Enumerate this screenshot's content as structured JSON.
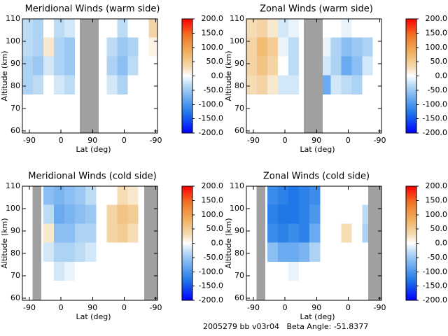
{
  "chart_data": [
    {
      "type": "contour",
      "title": "Meridional Winds (warm side)",
      "xlabel": "Lat (deg)",
      "ylabel": "Altitude (km)",
      "xlim": [
        -20,
        365
      ],
      "xticks": [
        {
          "value": 0,
          "label": "-90"
        },
        {
          "value": 90,
          "label": "0"
        },
        {
          "value": 180,
          "label": "90"
        },
        {
          "value": 270,
          "label": "0"
        },
        {
          "value": 360,
          "label": "-90"
        }
      ],
      "ylim": [
        59,
        110
      ],
      "yticks": [
        60,
        70,
        80,
        90,
        100,
        110
      ],
      "x": [
        -5,
        25,
        55,
        85,
        115,
        145,
        175,
        205,
        235,
        265,
        295,
        325,
        355
      ],
      "y": [
        63.5,
        72,
        80.5,
        89,
        97.5,
        106
      ],
      "z": [
        [
          null,
          null,
          null,
          null,
          null,
          null,
          null,
          null,
          null,
          null,
          null,
          null,
          null
        ],
        [
          null,
          0,
          null,
          0,
          0,
          null,
          null,
          null,
          null,
          null,
          null,
          null,
          null
        ],
        [
          -40,
          -30,
          0,
          -20,
          -30,
          null,
          null,
          0,
          -20,
          -40,
          0,
          0,
          0
        ],
        [
          -40,
          -50,
          -20,
          -40,
          -50,
          null,
          null,
          0,
          -40,
          -60,
          -30,
          0,
          0
        ],
        [
          -30,
          -40,
          20,
          -40,
          -50,
          null,
          null,
          0,
          -30,
          -50,
          -40,
          0,
          10
        ],
        [
          -30,
          -40,
          0,
          -30,
          -20,
          null,
          null,
          0,
          0,
          -30,
          0,
          0,
          40
        ]
      ],
      "gaps": [
        [
          144,
          197
        ]
      ],
      "colorbar": {
        "clim": [
          -200,
          200
        ],
        "ticks": [
          {
            "value": 200,
            "label": "200.0"
          },
          {
            "value": 150,
            "label": "150.0"
          },
          {
            "value": 100,
            "label": "100.0"
          },
          {
            "value": 50,
            "label": "50.0"
          },
          {
            "value": 0,
            "label": "0.0"
          },
          {
            "value": -50,
            "label": "-50.0"
          },
          {
            "value": -100,
            "label": "-100.0"
          },
          {
            "value": -150,
            "label": "-150.0"
          },
          {
            "value": -200,
            "label": "-200.0"
          }
        ]
      }
    },
    {
      "type": "contour",
      "title": "Zonal Winds (warm side)",
      "xlabel": "Lat (deg)",
      "ylabel": "Altitude (km)",
      "xlim": [
        -20,
        365
      ],
      "xticks": [
        {
          "value": 0,
          "label": "-90"
        },
        {
          "value": 90,
          "label": "0"
        },
        {
          "value": 180,
          "label": "90"
        },
        {
          "value": 270,
          "label": "0"
        },
        {
          "value": 360,
          "label": "-90"
        }
      ],
      "ylim": [
        59,
        110
      ],
      "yticks": [
        60,
        70,
        80,
        90,
        100,
        110
      ],
      "x": [
        -5,
        25,
        55,
        85,
        115,
        145,
        175,
        205,
        235,
        265,
        295,
        325,
        355
      ],
      "y": [
        63.5,
        72,
        80.5,
        89,
        97.5,
        106
      ],
      "z": [
        [
          null,
          null,
          null,
          null,
          null,
          null,
          null,
          null,
          null,
          null,
          null,
          null,
          null
        ],
        [
          null,
          null,
          null,
          null,
          null,
          null,
          null,
          null,
          null,
          null,
          null,
          null,
          null
        ],
        [
          30,
          40,
          20,
          -20,
          -20,
          null,
          null,
          -80,
          -20,
          -30,
          -40,
          0,
          0
        ],
        [
          40,
          60,
          40,
          0,
          -30,
          null,
          null,
          -20,
          -40,
          -80,
          -60,
          -20,
          0
        ],
        [
          40,
          70,
          50,
          -10,
          -30,
          null,
          null,
          -10,
          -40,
          -60,
          -50,
          -40,
          0
        ],
        [
          30,
          40,
          20,
          -20,
          -10,
          null,
          null,
          0,
          0,
          -10,
          0,
          0,
          0
        ]
      ],
      "gaps": [
        [
          144,
          197
        ]
      ],
      "colorbar": {
        "clim": [
          -200,
          200
        ],
        "ticks": [
          {
            "value": 200,
            "label": "200.0"
          },
          {
            "value": 150,
            "label": "150.0"
          },
          {
            "value": 100,
            "label": "100.0"
          },
          {
            "value": 50,
            "label": "50.0"
          },
          {
            "value": 0,
            "label": "0.0"
          },
          {
            "value": -50,
            "label": "-50.0"
          },
          {
            "value": -100,
            "label": "-100.0"
          },
          {
            "value": -150,
            "label": "-150.0"
          },
          {
            "value": -200,
            "label": "-200.0"
          }
        ]
      }
    },
    {
      "type": "contour",
      "title": "Meridional Winds (cold side)",
      "xlabel": "Lat (deg)",
      "ylabel": "Altitude (km)",
      "xlim": [
        -20,
        365
      ],
      "xticks": [
        {
          "value": 0,
          "label": "-90"
        },
        {
          "value": 90,
          "label": "0"
        },
        {
          "value": 180,
          "label": "90"
        },
        {
          "value": 270,
          "label": "0"
        },
        {
          "value": 360,
          "label": "-90"
        }
      ],
      "ylim": [
        59,
        110
      ],
      "yticks": [
        60,
        70,
        80,
        90,
        100,
        110
      ],
      "x": [
        -5,
        25,
        55,
        85,
        115,
        145,
        175,
        205,
        235,
        265,
        295,
        325,
        355
      ],
      "y": [
        63.5,
        72,
        80.5,
        89,
        97.5,
        106
      ],
      "z": [
        [
          null,
          null,
          null,
          null,
          null,
          null,
          null,
          null,
          null,
          null,
          null,
          null,
          null
        ],
        [
          null,
          null,
          0,
          -20,
          -10,
          0,
          0,
          null,
          null,
          null,
          null,
          null,
          null
        ],
        [
          null,
          null,
          -20,
          -40,
          -40,
          -30,
          -20,
          null,
          null,
          null,
          null,
          null,
          null
        ],
        [
          null,
          null,
          20,
          -60,
          -60,
          -40,
          -40,
          null,
          40,
          50,
          30,
          null,
          null
        ],
        [
          null,
          null,
          -30,
          -80,
          -70,
          -60,
          -50,
          null,
          40,
          60,
          50,
          null,
          null
        ],
        [
          null,
          null,
          -60,
          -70,
          -60,
          -50,
          -30,
          null,
          0,
          30,
          20,
          null,
          null
        ]
      ],
      "gaps": [
        [
          9,
          34
        ],
        [
          327,
          365
        ]
      ],
      "colorbar": {
        "clim": [
          -200,
          200
        ],
        "ticks": [
          {
            "value": 200,
            "label": "200.0"
          },
          {
            "value": 150,
            "label": "150.0"
          },
          {
            "value": 100,
            "label": "100.0"
          },
          {
            "value": 50,
            "label": "50.0"
          },
          {
            "value": 0,
            "label": "0.0"
          },
          {
            "value": -50,
            "label": "-50.0"
          },
          {
            "value": -100,
            "label": "-100.0"
          },
          {
            "value": -150,
            "label": "-150.0"
          },
          {
            "value": -200,
            "label": "-200.0"
          }
        ]
      }
    },
    {
      "type": "contour",
      "title": "Zonal Winds (cold side)",
      "xlabel": "Lat (deg)",
      "ylabel": "Altitude (km)",
      "xlim": [
        -20,
        365
      ],
      "xticks": [
        {
          "value": 0,
          "label": "-90"
        },
        {
          "value": 90,
          "label": "0"
        },
        {
          "value": 180,
          "label": "90"
        },
        {
          "value": 270,
          "label": "0"
        },
        {
          "value": 360,
          "label": "-90"
        }
      ],
      "ylim": [
        59,
        110
      ],
      "yticks": [
        60,
        70,
        80,
        90,
        100,
        110
      ],
      "x": [
        -5,
        25,
        55,
        85,
        115,
        145,
        175,
        205,
        235,
        265,
        295,
        325,
        355
      ],
      "y": [
        63.5,
        72,
        80.5,
        89,
        97.5,
        106
      ],
      "z": [
        [
          null,
          null,
          null,
          null,
          null,
          null,
          null,
          null,
          null,
          null,
          null,
          null,
          null
        ],
        [
          null,
          null,
          0,
          0,
          -10,
          0,
          0,
          null,
          null,
          null,
          null,
          null,
          null
        ],
        [
          null,
          null,
          -60,
          -80,
          -80,
          -70,
          -40,
          null,
          null,
          null,
          null,
          null,
          null
        ],
        [
          null,
          null,
          -110,
          -120,
          -110,
          -120,
          -80,
          null,
          0,
          30,
          0,
          -40,
          null
        ],
        [
          null,
          null,
          -120,
          -130,
          -130,
          -120,
          -100,
          null,
          0,
          0,
          0,
          -30,
          null
        ],
        [
          null,
          null,
          -110,
          -120,
          -130,
          -120,
          -110,
          null,
          null,
          null,
          null,
          null,
          null
        ]
      ],
      "gaps": [
        [
          9,
          34
        ],
        [
          327,
          365
        ]
      ],
      "colorbar": {
        "clim": [
          -200,
          200
        ],
        "ticks": [
          {
            "value": 200,
            "label": "200.0"
          },
          {
            "value": 150,
            "label": "150.0"
          },
          {
            "value": 100,
            "label": "100.0"
          },
          {
            "value": 50,
            "label": "50.0"
          },
          {
            "value": 0,
            "label": "0.0"
          },
          {
            "value": -50,
            "label": "-50.0"
          },
          {
            "value": -100,
            "label": "-100.0"
          },
          {
            "value": -150,
            "label": "-150.0"
          },
          {
            "value": -200,
            "label": "-200.0"
          }
        ]
      }
    }
  ],
  "footer": "2005279 bb v03r04   Beta Angle: -51.8377"
}
